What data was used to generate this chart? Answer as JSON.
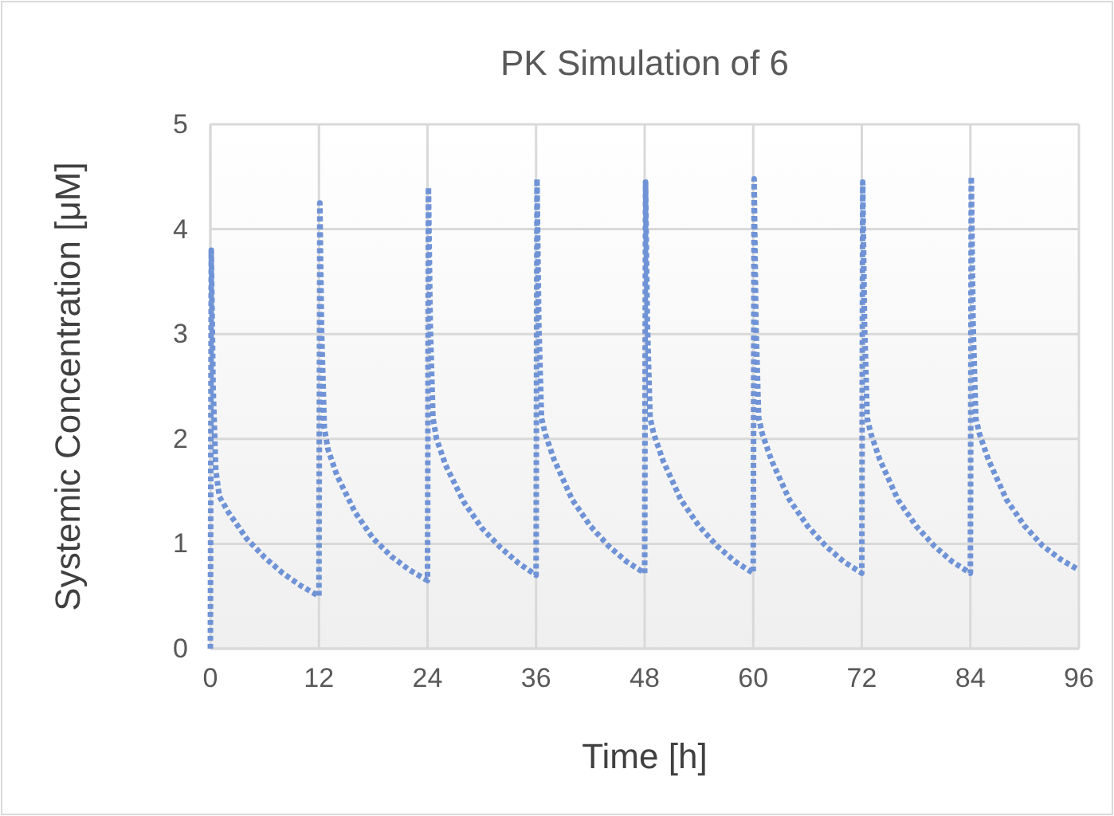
{
  "chart_data": {
    "type": "line",
    "title": "PK Simulation of 6",
    "xlabel": "Time [h]",
    "ylabel": "Systemic Concentration [μM]",
    "xlim": [
      0,
      96
    ],
    "xticks": [
      0,
      12,
      24,
      36,
      48,
      60,
      72,
      84,
      96
    ],
    "ylim": [
      0,
      5
    ],
    "yticks": [
      0,
      1,
      2,
      3,
      4,
      5
    ],
    "grid": true,
    "line_style": "dotted",
    "marker": "none",
    "series": [
      {
        "color": "#6f93d6",
        "x": [
          0,
          0.1,
          0.3,
          0.6,
          1,
          2,
          4,
          6,
          8,
          10,
          12,
          12.1,
          12.3,
          12.6,
          13,
          14,
          16,
          18,
          20,
          22,
          24,
          24.1,
          24.3,
          24.6,
          25,
          26,
          28,
          30,
          32,
          34,
          36,
          36.1,
          36.3,
          36.6,
          37,
          38,
          40,
          42,
          44,
          46,
          48,
          48.1,
          48.3,
          48.6,
          49,
          50,
          52,
          54,
          56,
          58,
          60,
          60.1,
          60.3,
          60.6,
          61,
          62,
          64,
          66,
          68,
          70,
          72,
          72.1,
          72.3,
          72.6,
          73,
          74,
          76,
          78,
          80,
          82,
          84,
          84.1,
          84.3,
          84.6,
          85,
          86,
          88,
          90,
          92,
          94,
          96
        ],
        "values": [
          0,
          3.8,
          2.5,
          1.7,
          1.45,
          1.3,
          1.05,
          0.87,
          0.72,
          0.6,
          0.5,
          4.25,
          3.0,
          2.1,
          1.9,
          1.65,
          1.3,
          1.05,
          0.88,
          0.75,
          0.65,
          4.4,
          3.1,
          2.2,
          2.0,
          1.75,
          1.4,
          1.15,
          0.97,
          0.82,
          0.7,
          4.48,
          3.1,
          2.2,
          2.05,
          1.8,
          1.42,
          1.17,
          0.98,
          0.83,
          0.72,
          4.45,
          3.1,
          2.2,
          2.05,
          1.8,
          1.42,
          1.17,
          0.98,
          0.83,
          0.72,
          4.48,
          3.1,
          2.2,
          2.05,
          1.8,
          1.42,
          1.17,
          0.98,
          0.83,
          0.72,
          4.45,
          3.1,
          2.2,
          2.05,
          1.8,
          1.42,
          1.17,
          0.98,
          0.83,
          0.72,
          4.5,
          3.1,
          2.2,
          2.05,
          1.8,
          1.42,
          1.17,
          0.98,
          0.85,
          0.75
        ]
      }
    ]
  }
}
